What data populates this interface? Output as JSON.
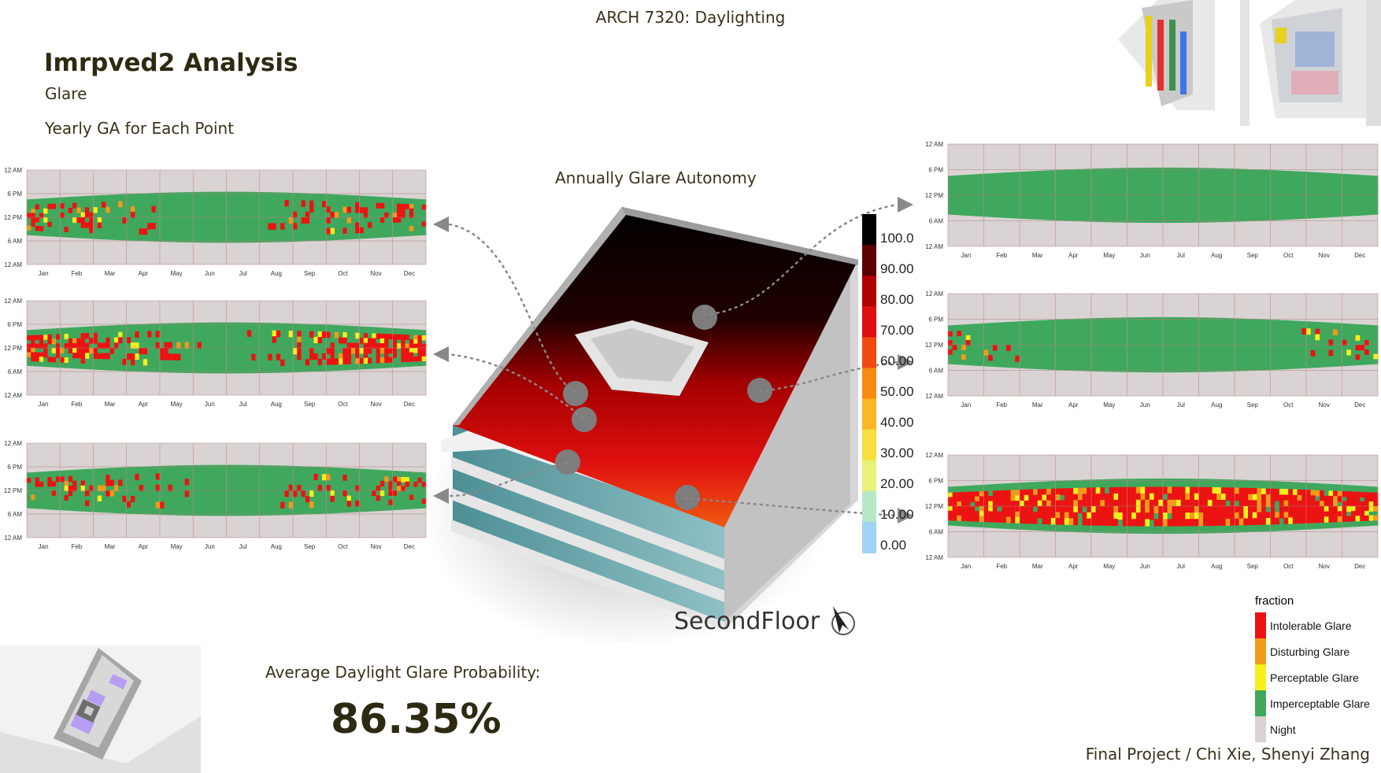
{
  "header": {
    "course": "ARCH 7320: Daylighting"
  },
  "title": "Imrpved2 Analysis",
  "subtitle": "Glare",
  "section_label": "Yearly GA for Each Point",
  "center_title": "Annually Glare Autonomy",
  "floor_label": "SecondFloor",
  "average": {
    "label": "Average Daylight Glare Probability:",
    "value": "86.35%"
  },
  "credit": "Final Project / Chi Xie, Shenyi Zhang",
  "scale": {
    "labels": [
      "100.0",
      "90.00",
      "80.00",
      "70.00",
      "60.00",
      "50.00",
      "40.00",
      "30.00",
      "20.00",
      "10.00",
      "0.00"
    ],
    "colors": [
      "#000000",
      "#5a0000",
      "#b00000",
      "#e01010",
      "#f04a10",
      "#f78a10",
      "#fbb824",
      "#f6e040",
      "#eaf078",
      "#b6e8c8",
      "#9fd4f5"
    ]
  },
  "legend": {
    "title": "fraction",
    "items": [
      {
        "label": "Intolerable Glare",
        "color": "#ee1111"
      },
      {
        "label": "Disturbing Glare",
        "color": "#f39a1a"
      },
      {
        "label": "Perceptable Glare",
        "color": "#f7f01a"
      },
      {
        "label": "Imperceptable Glare",
        "color": "#3fa85d"
      },
      {
        "label": "Night",
        "color": "#d9d3d3"
      }
    ]
  },
  "heatmaps": {
    "y_ticks": [
      "12 AM",
      "6 PM",
      "12 PM",
      "6 AM",
      "12 AM"
    ],
    "months": [
      "Jan",
      "Feb",
      "Mar",
      "Apr",
      "May",
      "Jun",
      "Jul",
      "Aug",
      "Sep",
      "Oct",
      "Nov",
      "Dec"
    ],
    "charts": [
      {
        "id": "left-1",
        "glare": "moderate"
      },
      {
        "id": "left-2",
        "glare": "heavy"
      },
      {
        "id": "left-3",
        "glare": "moderate"
      },
      {
        "id": "right-1",
        "glare": "none"
      },
      {
        "id": "right-2",
        "glare": "light"
      },
      {
        "id": "right-3",
        "glare": "full"
      }
    ]
  }
}
